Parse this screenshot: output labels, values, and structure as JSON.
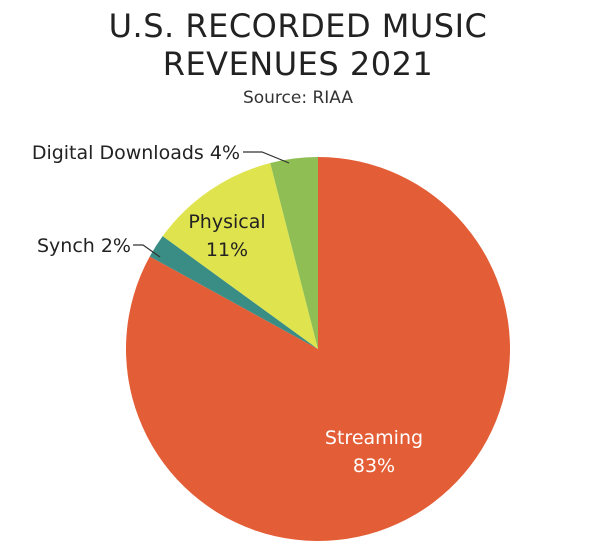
{
  "chart_data": {
    "type": "pie",
    "title_lines": [
      "U.S. RECORDED MUSIC",
      "REVENUES 2021"
    ],
    "subtitle": "Source: RIAA",
    "slices": [
      {
        "name": "Streaming",
        "value": 83,
        "label": "83%",
        "color": "#e35d36"
      },
      {
        "name": "Synch",
        "value": 2,
        "label": "2%",
        "color": "#3a8d84"
      },
      {
        "name": "Physical",
        "value": 11,
        "label": "11%",
        "color": "#dfe34e"
      },
      {
        "name": "Digital Downloads",
        "value": 4,
        "label": "4%",
        "color": "#8fbe54"
      }
    ],
    "start_angle_deg": 0,
    "direction": "clockwise"
  },
  "labels": {
    "streaming_name": "Streaming",
    "streaming_pct": "83%",
    "physical_name": "Physical",
    "physical_pct": "11%",
    "synch": "Synch 2%",
    "downloads": "Digital Downloads 4%"
  }
}
